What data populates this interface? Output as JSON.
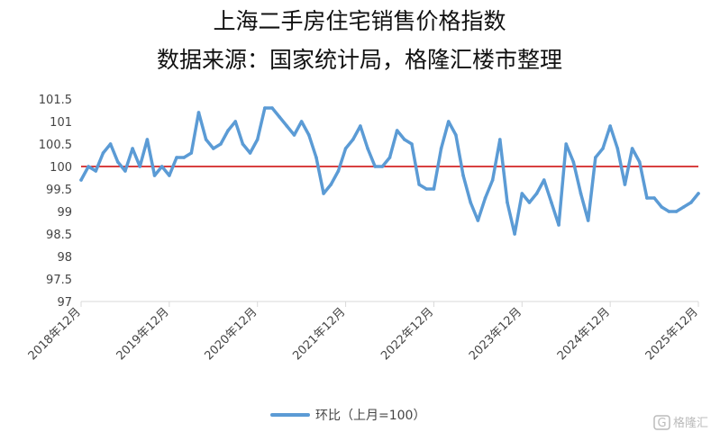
{
  "chart_data": {
    "type": "line",
    "title": "上海二手房住宅销售价格指数",
    "subtitle": "数据来源：国家统计局，格隆汇楼市整理",
    "xlabel": "",
    "ylabel": "",
    "ylim": [
      97,
      101.5
    ],
    "y_ticks": [
      "97",
      "97.5",
      "98",
      "98.5",
      "99",
      "99.5",
      "100",
      "100.5",
      "101",
      "101.5"
    ],
    "x_ticks": [
      "2018年12月",
      "2019年12月",
      "2020年12月",
      "2021年12月",
      "2022年12月",
      "2023年12月",
      "2024年12月",
      "2025年12月"
    ],
    "grid": false,
    "legend_position": "bottom",
    "reference_line": {
      "value": 100,
      "color": "#cc0000"
    },
    "series": [
      {
        "name": "环比（上月=100）",
        "color": "#5b9bd5",
        "values": [
          99.7,
          100.0,
          99.9,
          100.3,
          100.5,
          100.1,
          99.9,
          100.4,
          100.0,
          100.6,
          99.8,
          100.0,
          99.8,
          100.2,
          100.2,
          100.3,
          101.2,
          100.6,
          100.4,
          100.5,
          100.8,
          101.0,
          100.5,
          100.3,
          100.6,
          101.3,
          101.3,
          101.1,
          100.9,
          100.7,
          101.0,
          100.7,
          100.2,
          99.4,
          99.6,
          99.9,
          100.4,
          100.6,
          100.9,
          100.4,
          100.0,
          100.0,
          100.2,
          100.8,
          100.6,
          100.5,
          99.6,
          99.5,
          99.5,
          100.4,
          101.0,
          100.7,
          99.8,
          99.2,
          98.8,
          99.3,
          99.7,
          100.6,
          99.2,
          98.5,
          99.4,
          99.2,
          99.4,
          99.7,
          99.2,
          98.7,
          100.5,
          100.1,
          99.4,
          98.8,
          100.2,
          100.4,
          100.9,
          100.4,
          99.6,
          100.4,
          100.1,
          99.3,
          99.3,
          99.1,
          99.0,
          99.0,
          99.1,
          99.2,
          99.4
        ]
      }
    ]
  },
  "watermark": {
    "text": "格隆汇"
  }
}
